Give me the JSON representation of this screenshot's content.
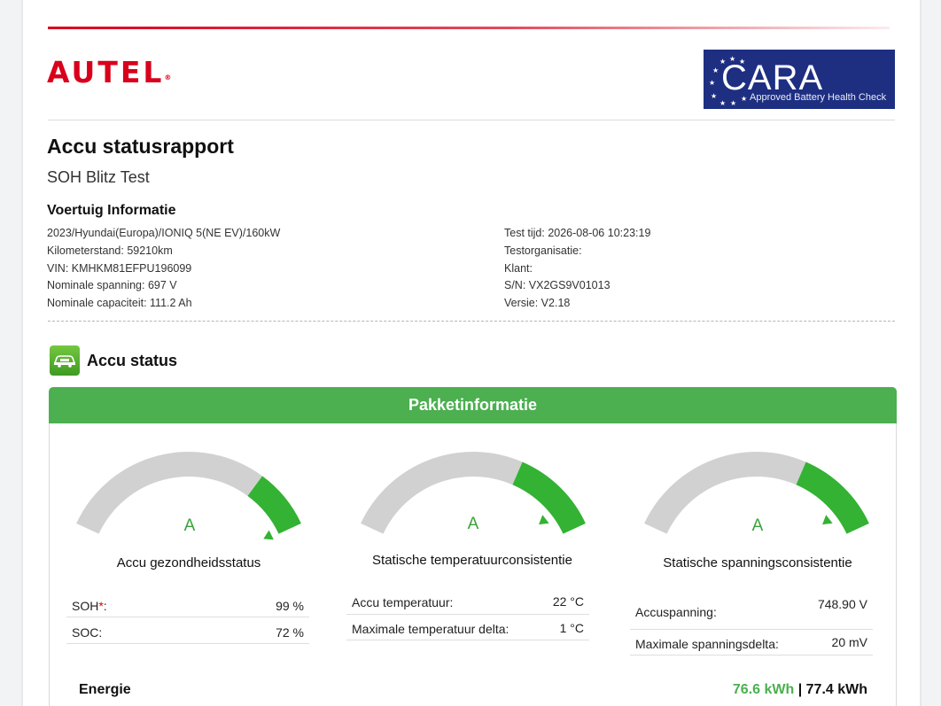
{
  "brand": {
    "logo_text": "AUTEL",
    "logo_mark": "®",
    "cara_word": "CARA",
    "cara_tagline": "Approved Battery Health Check"
  },
  "report": {
    "title": "Accu statusrapport",
    "subtitle": "SOH Blitz Test"
  },
  "vehicle_info": {
    "heading": "Voertuig Informatie",
    "left": [
      "2023/Hyundai(Europa)/IONIQ 5(NE EV)/160kW",
      "Kilometerstand: 59210km",
      "VIN: KMHKM81EFPU196099",
      "Nominale spanning: 697 V",
      "Nominale capaciteit: 111.2 Ah"
    ],
    "right": [
      "Test tijd: 2026-08-06 10:23:19",
      "Testorganisatie:",
      "Klant:",
      "S/N: VX2GS9V01013",
      "Versie: V2.18"
    ]
  },
  "accu_status": {
    "icon": "battery-car-icon",
    "title": "Accu status",
    "panel_title": "Pakketinformatie"
  },
  "gauges": [
    {
      "grade": "A",
      "label": "Accu gezondheidsstatus",
      "level": 0.99,
      "rows": [
        {
          "key": "SOH",
          "mark": "*",
          "suffix": ":",
          "value": "99 %"
        },
        {
          "key": "SOC:",
          "value": "72 %"
        }
      ]
    },
    {
      "grade": "A",
      "label": "Statische temperatuurconsistentie",
      "level": 0.9,
      "rows": [
        {
          "key": "Accu temperatuur:",
          "value": "22 °C"
        },
        {
          "key": "Maximale temperatuur delta:",
          "value": "1 °C"
        }
      ]
    },
    {
      "grade": "A",
      "label": "Statische spanningsconsistentie",
      "level": 0.9,
      "rows": [
        {
          "key": "Accuspanning:",
          "value": "748.90 V"
        },
        {
          "key": "Maximale spanningsdelta:",
          "value": "20 mV"
        }
      ]
    }
  ],
  "energy": {
    "label": "Energie",
    "current": "76.6 kWh",
    "separator": "|",
    "total": "77.4 kWh"
  },
  "colors": {
    "brand_red": "#d9001b",
    "accent_green": "#4caf50",
    "gauge_green": "#33b233",
    "gauge_grey": "#d1d1d1",
    "cara_blue": "#1e2f82"
  }
}
